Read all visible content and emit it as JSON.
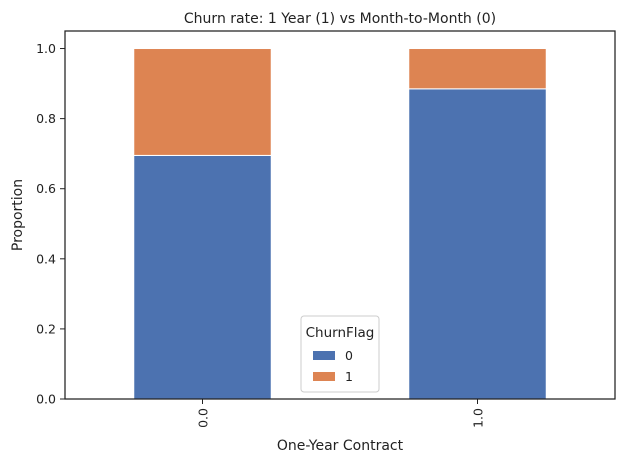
{
  "chart_data": {
    "type": "bar",
    "stacked": true,
    "title": "Churn rate: 1 Year (1) vs Month-to-Month (0)",
    "xlabel": "One-Year Contract",
    "ylabel": "Proportion",
    "categories": [
      "0.0",
      "1.0"
    ],
    "ylim": [
      0,
      1.05
    ],
    "yticks": [
      "0.0",
      "0.2",
      "0.4",
      "0.6",
      "0.8",
      "1.0"
    ],
    "grid": false,
    "legend": {
      "title": "ChurnFlag",
      "placement": "bottom-center"
    },
    "series": [
      {
        "name": "0",
        "color": "#4c72b0",
        "values": [
          0.695,
          0.885
        ]
      },
      {
        "name": "1",
        "color": "#dd8452",
        "values": [
          0.305,
          0.115
        ]
      }
    ]
  }
}
